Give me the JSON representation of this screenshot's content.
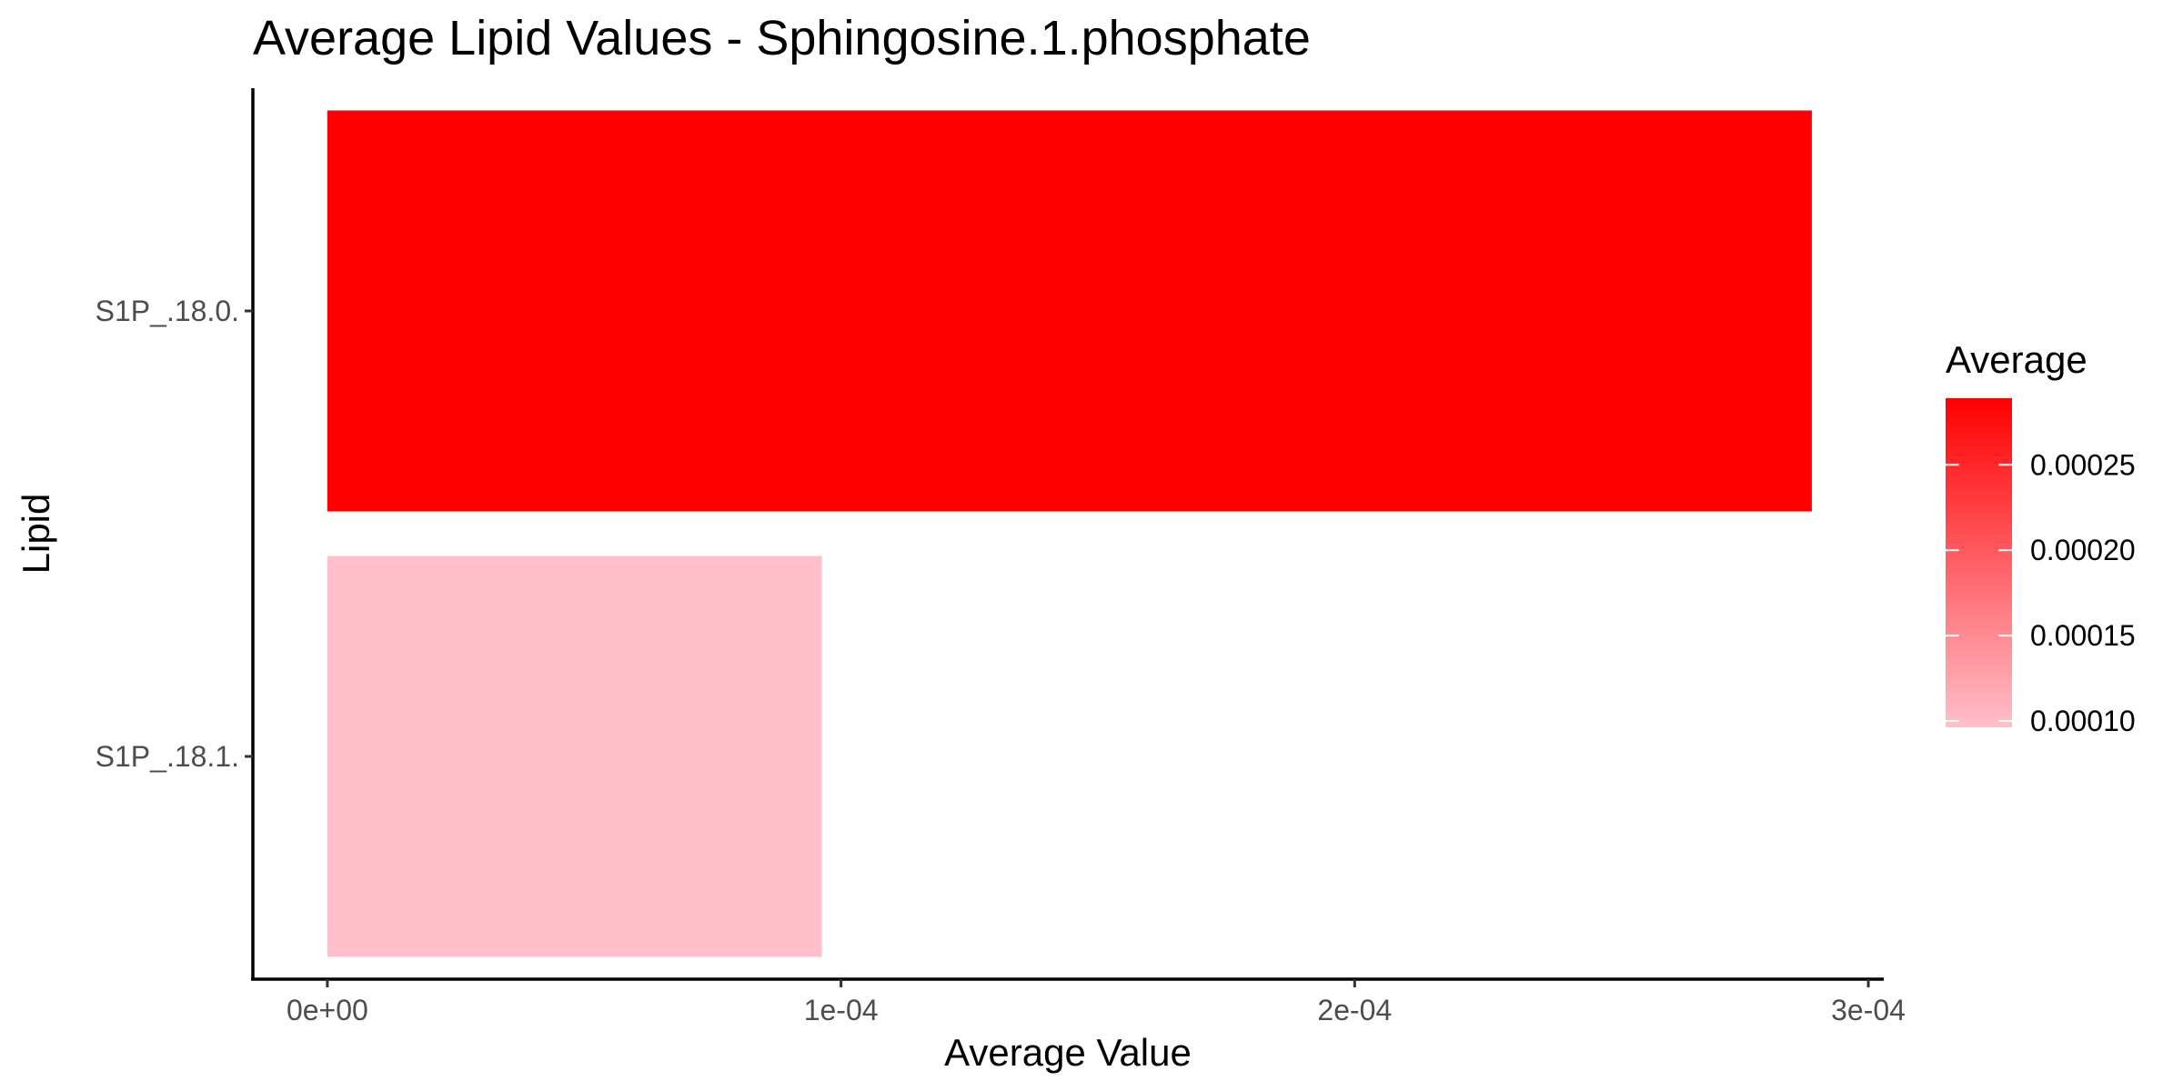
{
  "chart_data": {
    "type": "bar",
    "orientation": "horizontal",
    "title": "Average Lipid Values - Sphingosine.1.phosphate",
    "xlabel": "Average Value",
    "ylabel": "Lipid",
    "categories": [
      "S1P_.18.0.",
      "S1P_.18.1."
    ],
    "values": [
      0.000289,
      9.63e-05
    ],
    "xlim": [
      -1.45e-05,
      0.000303
    ],
    "x_ticks": [
      {
        "value": 0,
        "label": "0e+00"
      },
      {
        "value": 0.0001,
        "label": "1e-04"
      },
      {
        "value": 0.0002,
        "label": "2e-04"
      },
      {
        "value": 0.0003,
        "label": "3e-04"
      }
    ],
    "legend": {
      "title": "Average",
      "position": "right",
      "low_color": "#ffc0cb",
      "high_color": "#ff0000",
      "range": [
        9.63e-05,
        0.000289
      ],
      "ticks": [
        {
          "value": 0.0001,
          "label": "0.00010"
        },
        {
          "value": 0.00015,
          "label": "0.00015"
        },
        {
          "value": 0.0002,
          "label": "0.00020"
        },
        {
          "value": 0.00025,
          "label": "0.00025"
        }
      ]
    },
    "grid": false
  }
}
